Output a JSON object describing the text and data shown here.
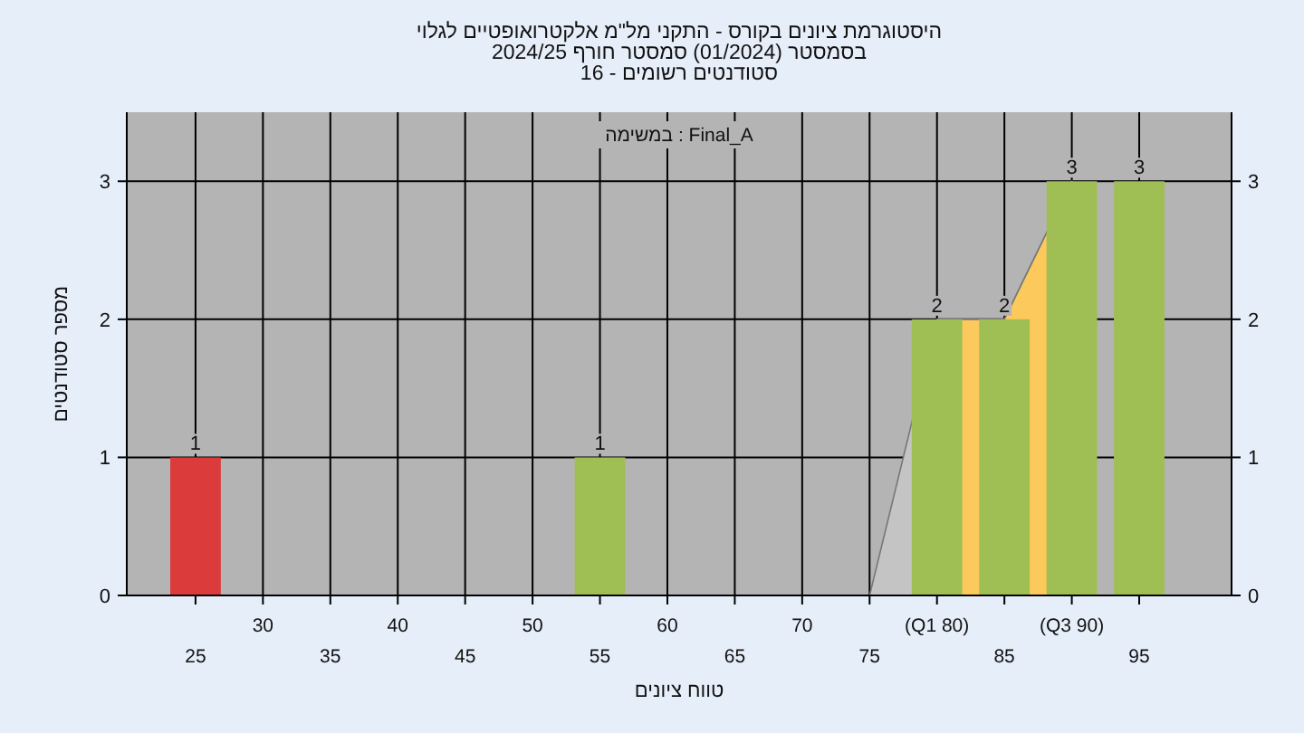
{
  "chart_data": {
    "type": "bar",
    "title": "היסטוגרמת ציונים בקורס - התקני מל\"מ אלקטרואופטיים לגלוי",
    "subtitle": "בסמסטר  (01/2024)  סמסטר חורף 2024/25",
    "annotations": [
      "סטודנטים רשומים - 16",
      "במשימה : Final_A"
    ],
    "xlabel": "טווח ציונים",
    "ylabel": "מספר סטודנטים",
    "categories": [
      "25",
      "30",
      "35",
      "40",
      "45",
      "50",
      "55",
      "60",
      "65",
      "70",
      "75",
      "(Q1 80)",
      "85",
      "(Q3 90)",
      "95"
    ],
    "series": [
      {
        "type": "area",
        "color": "#c4c4c4",
        "values": [
          null,
          null,
          null,
          null,
          null,
          null,
          null,
          null,
          null,
          null,
          0,
          2,
          2,
          3,
          null
        ]
      },
      {
        "type": "area",
        "color": "#fbc95c",
        "values": [
          null,
          null,
          null,
          null,
          null,
          null,
          null,
          null,
          null,
          null,
          null,
          2,
          2,
          3,
          null
        ]
      },
      {
        "colors": [
          "#dc3b3b",
          "#9fbf55",
          "#9fbf55",
          "#9fbf55",
          "#9fbf55",
          "#9fbf55",
          "#9fbf55",
          "#9fbf55",
          "#9fbf55",
          "#9fbf55",
          "#9fbf55",
          "#9fbf55",
          "#9fbf55",
          "#9fbf55",
          "#9fbf55"
        ],
        "values": [
          1,
          0,
          0,
          0,
          0,
          0,
          1,
          0,
          0,
          0,
          0,
          2,
          2,
          3,
          3
        ],
        "value_labels": [
          "1",
          null,
          null,
          null,
          null,
          null,
          "1",
          null,
          null,
          null,
          null,
          "2",
          "2",
          "3",
          "3"
        ]
      }
    ],
    "ylim": [
      0,
      3.5
    ],
    "yticks": [
      0,
      1,
      2,
      3
    ],
    "y2lim": [
      0,
      3.5
    ],
    "y2ticks": [
      0,
      1,
      2,
      3
    ],
    "grid": true
  }
}
